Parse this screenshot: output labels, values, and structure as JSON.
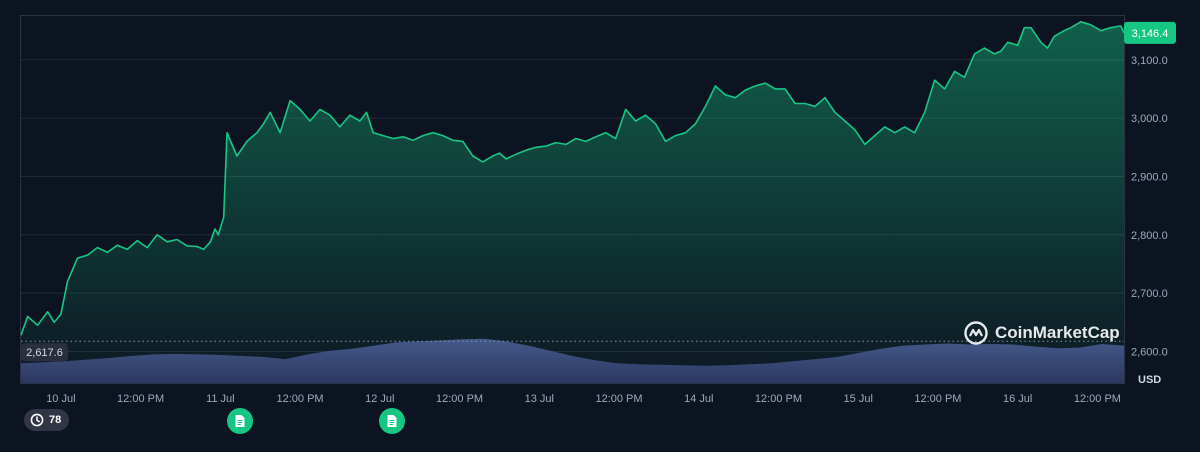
{
  "chart_data": {
    "type": "area",
    "currency": "USD",
    "y_ticks": [
      "2,600.0",
      "2,700.0",
      "2,800.0",
      "2,900.0",
      "3,000.0",
      "3,100.0"
    ],
    "y_tick_values": [
      2600,
      2700,
      2800,
      2900,
      3000,
      3100
    ],
    "ylim": [
      2546,
      3175
    ],
    "x_ticks": [
      "10 Jul",
      "12:00 PM",
      "11 Jul",
      "12:00 PM",
      "12 Jul",
      "12:00 PM",
      "13 Jul",
      "12:00 PM",
      "14 Jul",
      "12:00 PM",
      "15 Jul",
      "12:00 PM",
      "16 Jul",
      "12:00 PM"
    ],
    "x_tick_hours": [
      0,
      12,
      24,
      36,
      48,
      60,
      72,
      84,
      96,
      108,
      120,
      132,
      144,
      156
    ],
    "xlim_hours": [
      -6,
      160
    ],
    "current_price": "3,146.4",
    "reference_price": "2,617.6",
    "reference_value": 2617.6,
    "accent_color": "#16c784",
    "series": [
      {
        "x": [
          -6.0,
          -5.0,
          -3.5,
          -2.0,
          -1.0,
          0.0,
          1.0,
          2.5,
          4.0,
          5.5,
          7.0,
          8.5,
          10.0,
          11.5,
          13.0,
          14.5,
          16.0,
          17.5,
          19.0,
          20.5,
          21.5,
          22.5,
          23.2,
          23.7,
          24.5,
          25.0,
          26.5,
          28.0,
          29.5,
          30.5,
          31.5,
          33.0,
          34.5,
          36.0,
          37.5,
          39.0,
          40.5,
          42.0,
          43.5,
          45.0,
          46.0,
          47.0,
          48.5,
          50.0,
          51.5,
          53.0,
          54.5,
          56.0,
          57.5,
          59.0,
          60.5,
          62.0,
          63.5,
          65.0,
          66.0,
          67.0,
          68.5,
          70.0,
          71.5,
          73.0,
          74.5,
          76.0,
          77.5,
          79.0,
          80.5,
          82.0,
          83.5,
          85.0,
          86.5,
          88.0,
          89.5,
          91.0,
          92.5,
          94.0,
          95.5,
          97.0,
          98.5,
          100.0,
          101.5,
          103.0,
          104.5,
          106.0,
          107.5,
          109.0,
          110.5,
          112.0,
          113.5,
          115.0,
          116.5,
          118.0,
          119.5,
          121.0,
          122.5,
          124.0,
          125.5,
          127.0,
          128.5,
          130.0,
          131.5,
          133.0,
          134.5,
          136.0,
          137.5,
          139.0,
          140.5,
          141.5,
          142.5,
          144.0,
          145.0,
          146.0,
          147.5,
          148.5,
          149.5,
          151.0,
          152.0,
          153.5,
          155.0,
          156.5,
          158.0,
          159.5,
          160.0
        ],
        "values": [
          2628,
          2660,
          2645,
          2668,
          2650,
          2664,
          2720,
          2760,
          2765,
          2778,
          2770,
          2782,
          2775,
          2790,
          2778,
          2800,
          2788,
          2792,
          2781,
          2780,
          2775,
          2788,
          2810,
          2800,
          2830,
          2975,
          2935,
          2960,
          2975,
          2990,
          3010,
          2975,
          3030,
          3015,
          2995,
          3015,
          3005,
          2985,
          3005,
          2995,
          3010,
          2975,
          2970,
          2965,
          2968,
          2962,
          2970,
          2975,
          2970,
          2962,
          2960,
          2935,
          2925,
          2935,
          2940,
          2930,
          2938,
          2945,
          2950,
          2952,
          2958,
          2955,
          2965,
          2960,
          2968,
          2975,
          2965,
          3015,
          2995,
          3005,
          2990,
          2960,
          2970,
          2975,
          2990,
          3020,
          3055,
          3040,
          3035,
          3048,
          3055,
          3060,
          3050,
          3050,
          3025,
          3025,
          3020,
          3035,
          3010,
          2995,
          2980,
          2955,
          2970,
          2985,
          2975,
          2985,
          2975,
          3010,
          3065,
          3050,
          3080,
          3070,
          3110,
          3120,
          3110,
          3115,
          3130,
          3125,
          3155,
          3155,
          3130,
          3120,
          3140,
          3150,
          3155,
          3165,
          3160,
          3150,
          3155,
          3158,
          3146
        ]
      }
    ],
    "volume": [
      0.38,
      0.4,
      0.42,
      0.45,
      0.48,
      0.52,
      0.55,
      0.56,
      0.55,
      0.54,
      0.52,
      0.5,
      0.46,
      0.55,
      0.62,
      0.66,
      0.72,
      0.78,
      0.8,
      0.82,
      0.84,
      0.85,
      0.8,
      0.72,
      0.62,
      0.52,
      0.44,
      0.38,
      0.36,
      0.35,
      0.34,
      0.33,
      0.34,
      0.36,
      0.38,
      0.42,
      0.46,
      0.5,
      0.58,
      0.66,
      0.72,
      0.74,
      0.76,
      0.74,
      0.75,
      0.74,
      0.7,
      0.67,
      0.68,
      0.75,
      0.72
    ]
  }
}
